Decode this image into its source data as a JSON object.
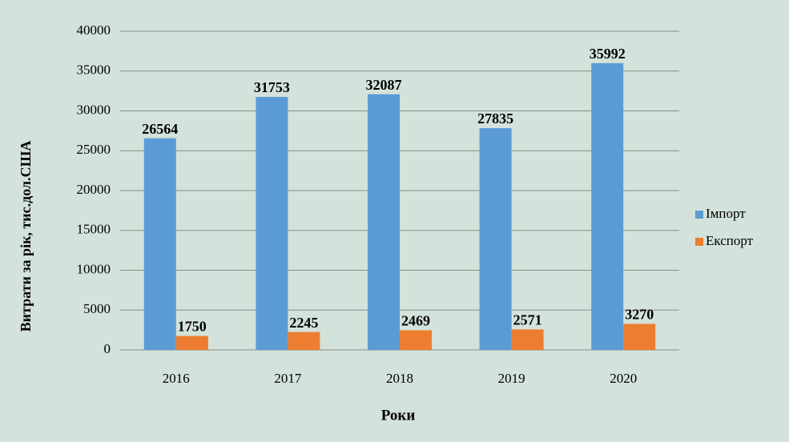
{
  "chart_data": {
    "type": "bar",
    "y_axis_label": "Витрати за рік, тис.дол.США",
    "x_axis_label": "Роки",
    "categories": [
      "2016",
      "2017",
      "2018",
      "2019",
      "2020"
    ],
    "series": [
      {
        "name": "Імпорт",
        "color": "#5b9bd5",
        "values": [
          26564,
          31753,
          32087,
          27835,
          35992
        ]
      },
      {
        "name": "Експорт",
        "color": "#ed7d31",
        "values": [
          1750,
          2245,
          2469,
          2571,
          3270
        ]
      }
    ],
    "ylim": [
      0,
      40000
    ],
    "yticks": [
      0,
      5000,
      10000,
      15000,
      20000,
      25000,
      30000,
      35000,
      40000
    ],
    "grid": true,
    "legend": "right"
  }
}
